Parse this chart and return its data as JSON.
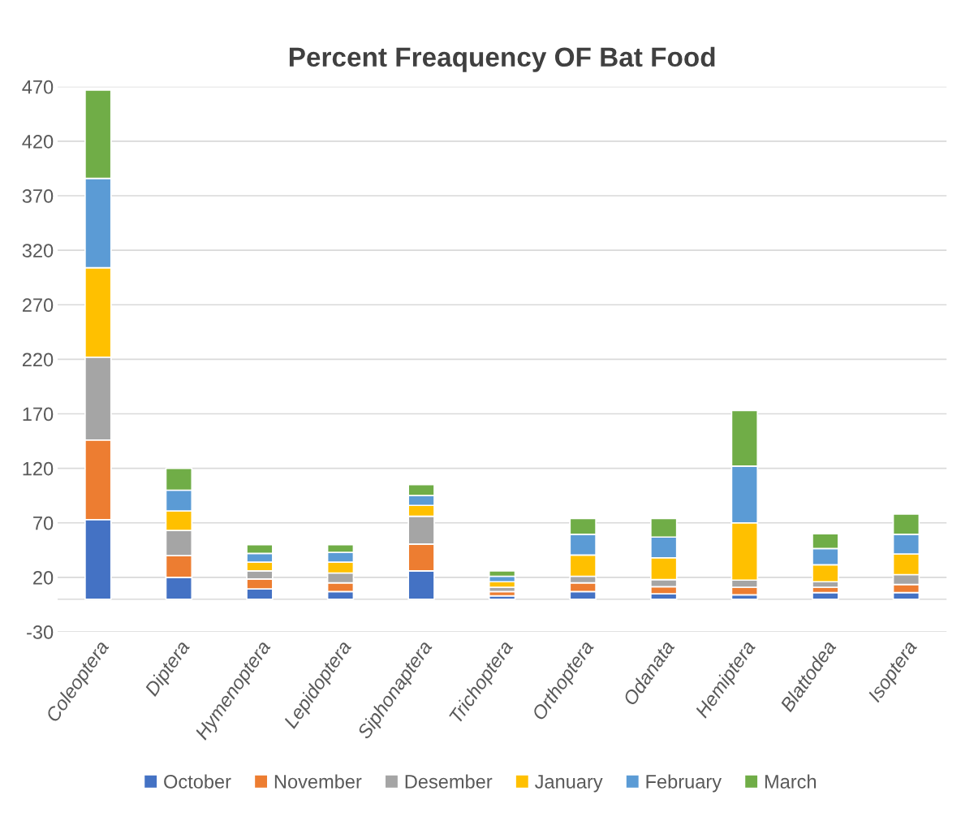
{
  "chart_data": {
    "type": "bar",
    "title": "Percent Freaquency OF Bat Food",
    "stacked": true,
    "categories": [
      "Coleoptera",
      "Diptera",
      "Hymenoptera",
      "Lepidoptera",
      "Siphonaptera",
      "Trichoptera",
      "Orthoptera",
      "Odanata",
      "Hemiptera",
      "Blattodea",
      "Isoptera"
    ],
    "series": [
      {
        "name": "October",
        "color": "#4472c4",
        "values": [
          73,
          20,
          9.5,
          7,
          26,
          3,
          7,
          5,
          4,
          6,
          6
        ]
      },
      {
        "name": "November",
        "color": "#ed7d31",
        "values": [
          73,
          20,
          9,
          8,
          24.5,
          4,
          8,
          6.5,
          7,
          5,
          7.5
        ]
      },
      {
        "name": "Desember",
        "color": "#a5a5a5",
        "values": [
          76,
          23,
          7.5,
          9,
          25.5,
          4,
          6,
          6.5,
          6.5,
          5,
          9
        ]
      },
      {
        "name": "January",
        "color": "#ffc000",
        "values": [
          82,
          18,
          8,
          10,
          10,
          5,
          19.5,
          20,
          52.5,
          15.5,
          19
        ]
      },
      {
        "name": "February",
        "color": "#5b9bd5",
        "values": [
          82,
          19,
          8,
          9,
          9,
          5,
          19,
          19,
          52,
          15,
          18
        ]
      },
      {
        "name": "March",
        "color": "#70ad47",
        "values": [
          81,
          20,
          8,
          7,
          10,
          5,
          14.5,
          17,
          51,
          13.5,
          18.5
        ]
      }
    ],
    "ylim": [
      -30,
      470
    ],
    "yticks": [
      -30,
      20,
      70,
      120,
      170,
      220,
      270,
      320,
      370,
      420,
      470
    ],
    "grid": "y",
    "legend": "bottom"
  }
}
